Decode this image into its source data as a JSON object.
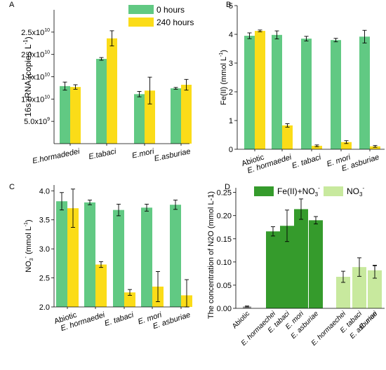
{
  "colors": {
    "green": "#61c983",
    "yellow": "#fbdc18",
    "dark_green": "#359b2c",
    "light_green": "#c8e99e",
    "gray": "#9a9a9a"
  },
  "chart_data": [
    {
      "panel": "A",
      "type": "bar",
      "ylabel_main": "16s rRNA (copies L",
      "ylabel_sup": "-1",
      "ylabel_end": ")",
      "ylim": [
        0,
        30000000000.0
      ],
      "yticks": [
        {
          "value": 5000000000.0,
          "mant": "5.0x10",
          "exp": "9"
        },
        {
          "value": 10000000000.0,
          "mant": "1.0x10",
          "exp": "10"
        },
        {
          "value": 15000000000.0,
          "mant": "1.5x10",
          "exp": "10"
        },
        {
          "value": 20000000000.0,
          "mant": "2.0x10",
          "exp": "10"
        },
        {
          "value": 25000000000.0,
          "mant": "2.5x10",
          "exp": "10"
        }
      ],
      "categories": [
        "E.hormadedei",
        "E.tabaci",
        "E.mori",
        "E.asburiae"
      ],
      "series": [
        {
          "name": "0 hours",
          "color": "#61c983",
          "values": [
            12900000000.0,
            19000000000.0,
            11100000000.0,
            12400000000.0
          ],
          "errors": [
            900000000.0,
            300000000.0,
            600000000.0,
            200000000.0
          ]
        },
        {
          "name": "240 hours",
          "color": "#fbdc18",
          "values": [
            12700000000.0,
            23600000000.0,
            11900000000.0,
            13200000000.0
          ],
          "errors": [
            500000000.0,
            1700000000.0,
            3000000000.0,
            1200000000.0
          ]
        }
      ],
      "legend": "top-right"
    },
    {
      "panel": "B",
      "type": "bar",
      "ylabel_main": "Fe(II) (mmol L",
      "ylabel_sup": "-1",
      "ylabel_end": ")",
      "ylim": [
        0,
        5
      ],
      "yticks": [
        {
          "value": 0,
          "label": "0"
        },
        {
          "value": 1,
          "label": "1"
        },
        {
          "value": 2,
          "label": "2"
        },
        {
          "value": 3,
          "label": "3"
        },
        {
          "value": 4,
          "label": "4"
        },
        {
          "value": 5,
          "label": "5"
        }
      ],
      "categories": [
        "Abiotic",
        "E. hormaedei",
        "E. tabaci",
        "E. mori",
        "E. asburiae"
      ],
      "series": [
        {
          "color": "#61c983",
          "values": [
            3.95,
            3.98,
            3.85,
            3.8,
            3.92
          ],
          "errors": [
            0.1,
            0.14,
            0.08,
            0.06,
            0.22
          ]
        },
        {
          "color": "#fbdc18",
          "values": [
            4.12,
            0.83,
            0.12,
            0.25,
            0.1
          ],
          "errors": [
            0.03,
            0.06,
            0.03,
            0.05,
            0.03
          ]
        }
      ]
    },
    {
      "panel": "C",
      "type": "bar",
      "ylabel_main": "NO",
      "ylabel_sub": "3",
      "ylabel_sup": "-",
      "ylabel_end": " (mmol L",
      "ylabel_sup2": "-1",
      "ylabel_end2": ")",
      "ylim": [
        2.0,
        4.1
      ],
      "yticks": [
        {
          "value": 2.0,
          "label": "2.0"
        },
        {
          "value": 2.5,
          "label": "2.5"
        },
        {
          "value": 3.0,
          "label": "3.0"
        },
        {
          "value": 3.5,
          "label": "3.5"
        },
        {
          "value": 4.0,
          "label": "4.0"
        }
      ],
      "categories": [
        "Abiotic",
        "E. hormaedei",
        "E. tabaci",
        "E. mori",
        "E. asburiae"
      ],
      "series": [
        {
          "color": "#61c983",
          "values": [
            3.82,
            3.8,
            3.67,
            3.71,
            3.76
          ],
          "errors": [
            0.15,
            0.04,
            0.1,
            0.06,
            0.08
          ]
        },
        {
          "color": "#fbdc18",
          "values": [
            3.7,
            2.73,
            2.25,
            2.35,
            2.2
          ],
          "errors": [
            0.33,
            0.05,
            0.05,
            0.26,
            0.27
          ]
        }
      ]
    },
    {
      "panel": "D",
      "type": "bar",
      "ylabel": "The concentration of N2O (mmol L-1)",
      "ylim": [
        0,
        0.26
      ],
      "yticks": [
        {
          "value": 0.0,
          "label": "0.00"
        },
        {
          "value": 0.05,
          "label": "0.05"
        },
        {
          "value": 0.1,
          "label": "0.10"
        },
        {
          "value": 0.15,
          "label": "0.15"
        },
        {
          "value": 0.2,
          "label": "0.20"
        },
        {
          "value": 0.25,
          "label": "0.25"
        }
      ],
      "categories": [
        "Abiotic",
        "E. hormaechei",
        "E. tabaci",
        "E. mori",
        "E. asburiae",
        "E. hormaechei",
        "E. tabaci",
        "E. mori",
        "E. asburiae"
      ],
      "values": [
        0.004,
        0.166,
        0.178,
        0.214,
        0.19,
        0.068,
        0.089,
        0.082,
        0.079
      ],
      "errors": [
        0.001,
        0.01,
        0.034,
        0.022,
        0.008,
        0.012,
        0.02,
        0.01,
        0.014
      ],
      "bar_groups": [
        "abiotic",
        "fe",
        "fe",
        "fe",
        "fe",
        "no3",
        "no3",
        "no3",
        "no3"
      ],
      "series": [
        {
          "name_main": "Fe(II)+NO",
          "name_sub": "3",
          "name_sup": "-",
          "color": "#359b2c"
        },
        {
          "name_main": "NO",
          "name_sub": "3",
          "name_sup": "-",
          "color": "#c8e99e"
        }
      ],
      "legend": "top"
    }
  ]
}
